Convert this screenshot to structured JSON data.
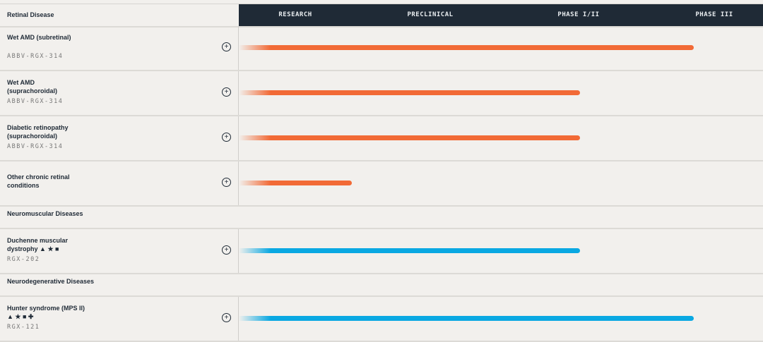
{
  "header": {
    "category": "Retinal Disease",
    "phases": [
      "RESEARCH",
      "PRECLINICAL",
      "PHASE I/II",
      "PHASE III"
    ]
  },
  "colors": {
    "retinal": "#f26a36",
    "neuro": "#0aa8e2",
    "header_bg": "#1f2a36"
  },
  "rows": [
    {
      "name": "Wet AMD (subretinal)",
      "code": "ABBV-RGX-314",
      "progress": 0.868,
      "color": "retinal"
    },
    {
      "name": "Wet AMD (suprachoroidal)",
      "code": "ABBV-RGX-314",
      "progress": 0.651,
      "color": "retinal"
    },
    {
      "name": "Diabetic retinopathy (suprachoroidal)",
      "code": "ABBV-RGX-314",
      "progress": 0.651,
      "color": "retinal"
    },
    {
      "name": "Other chronic retinal conditions",
      "code": "",
      "progress": 0.216,
      "color": "retinal"
    },
    {
      "category": "Neuromuscular Diseases"
    },
    {
      "name": "Duchenne muscular dystrophy",
      "icons": "▲ ★ ■",
      "code": "RGX-202",
      "progress": 0.651,
      "color": "neuro"
    },
    {
      "category": "Neurodegenerative Diseases"
    },
    {
      "name": "Hunter syndrome (MPS II)",
      "icons": "▲ ★ ■ ✚",
      "code": "RGX-121",
      "progress": 0.868,
      "color": "neuro"
    }
  ]
}
